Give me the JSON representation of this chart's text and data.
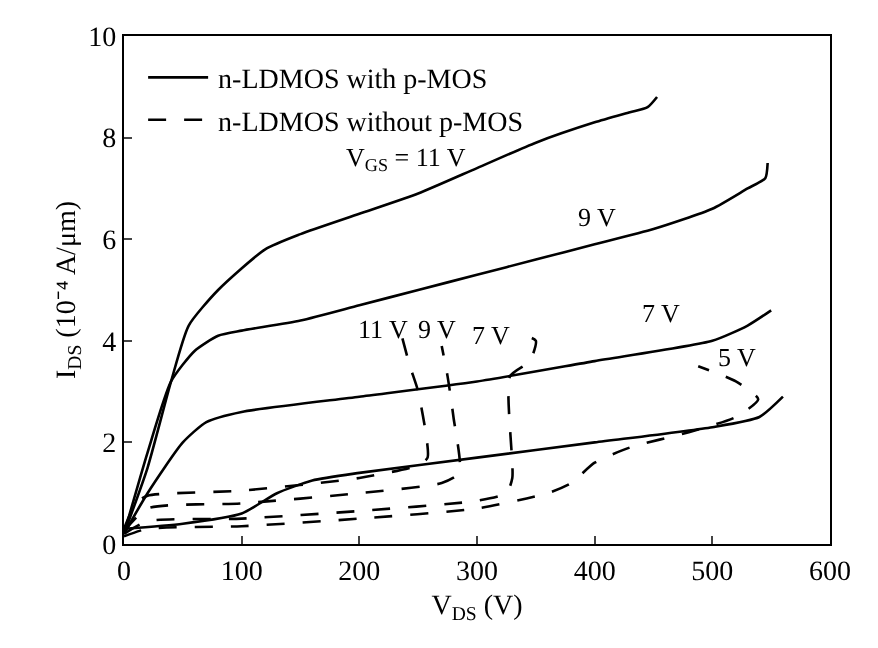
{
  "chart_data": {
    "type": "line",
    "xlabel": "V$_{DS}$ (V)",
    "ylabel": "I$_{DS}$ (10⁻⁴ A/μm)",
    "xlim": [
      0,
      600
    ],
    "xticks": [
      0,
      100,
      200,
      300,
      400,
      500,
      600
    ],
    "ylim": [
      0,
      10
    ],
    "yticks": [
      0,
      2,
      4,
      6,
      8,
      10
    ],
    "legend": "top left",
    "marker": "none",
    "series": [
      {
        "name": "n-LDMOS with p-MOS",
        "color": "#000000",
        "line_style": "solid",
        "x": [
          0,
          20,
          40,
          55,
          80,
          120,
          150,
          200,
          250,
          300,
          350,
          400,
          430,
          445,
          453
        ],
        "values": [
          0.2,
          1.5,
          3.2,
          4.3,
          5.0,
          5.8,
          6.1,
          6.5,
          6.9,
          7.4,
          7.9,
          8.3,
          8.5,
          8.6,
          8.8
        ]
      },
      {
        "color": "#000000",
        "line_style": "solid",
        "x": [
          0,
          20,
          40,
          60,
          80,
          100,
          150,
          200,
          250,
          300,
          350,
          400,
          450,
          500,
          530,
          545,
          547
        ],
        "values": [
          0.2,
          1.8,
          3.2,
          3.8,
          4.1,
          4.2,
          4.4,
          4.7,
          5.0,
          5.3,
          5.6,
          5.9,
          6.2,
          6.6,
          7.0,
          7.2,
          7.5
        ]
      },
      {
        "color": "#000000",
        "line_style": "solid",
        "x": [
          0,
          20,
          50,
          70,
          100,
          200,
          300,
          400,
          500,
          530,
          550
        ],
        "values": [
          0.2,
          1.0,
          2.0,
          2.4,
          2.6,
          2.9,
          3.2,
          3.6,
          4.0,
          4.3,
          4.6
        ]
      },
      {
        "color": "#000000",
        "line_style": "solid",
        "x": [
          0,
          50,
          100,
          130,
          160,
          200,
          300,
          400,
          500,
          540,
          560
        ],
        "values": [
          0.3,
          0.4,
          0.6,
          1.0,
          1.25,
          1.4,
          1.7,
          2.0,
          2.3,
          2.5,
          2.9
        ]
      },
      {
        "name": "n-LDMOS without p-MOS",
        "color": "#000000",
        "line_style": "dashed",
        "x": [
          0,
          10,
          20,
          100,
          200,
          250,
          258,
          250,
          243,
          236
        ],
        "values": [
          0.3,
          0.8,
          0.95,
          1.05,
          1.3,
          1.55,
          1.7,
          3.0,
          3.5,
          4.1
        ]
      },
      {
        "color": "#000000",
        "line_style": "dashed",
        "x": [
          0,
          20,
          100,
          200,
          270,
          285,
          280,
          275,
          270
        ],
        "values": [
          0.25,
          0.7,
          0.8,
          1.0,
          1.2,
          1.4,
          2.5,
          3.3,
          3.9
        ]
      },
      {
        "color": "#000000",
        "line_style": "dashed",
        "x": [
          0,
          20,
          100,
          200,
          300,
          325,
          330,
          328,
          345,
          350,
          342
        ],
        "values": [
          0.2,
          0.45,
          0.5,
          0.65,
          0.85,
          1.0,
          1.3,
          3.3,
          3.6,
          4.0,
          4.1
        ]
      },
      {
        "color": "#000000",
        "line_style": "dashed",
        "x": [
          0,
          20,
          100,
          200,
          300,
          360,
          380,
          400,
          430,
          480,
          520,
          539,
          520,
          488
        ],
        "values": [
          0.15,
          0.3,
          0.35,
          0.5,
          0.7,
          1.0,
          1.2,
          1.6,
          1.9,
          2.2,
          2.5,
          2.85,
          3.2,
          3.5
        ]
      }
    ],
    "annotations": [
      "V$_{GS}$ = 11 V",
      "9 V",
      "7 V",
      "11 V",
      "9 V",
      "7 V",
      "5 V"
    ]
  }
}
